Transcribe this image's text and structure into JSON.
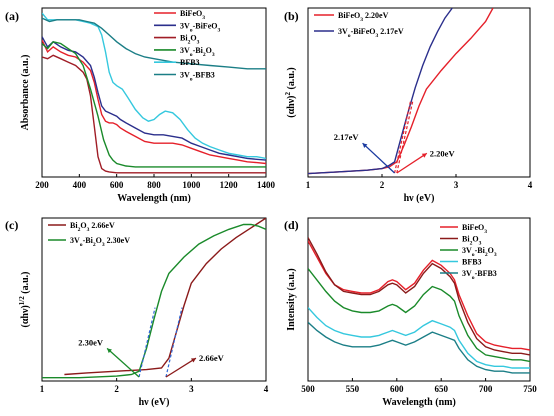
{
  "chart_data": [
    {
      "panel": "(a)",
      "type": "line",
      "xlabel": "Wavelength (nm)",
      "ylabel": "Absorbance (a.u.)",
      "xlim": [
        200,
        1400
      ],
      "ylim": [
        0,
        1
      ],
      "xticks": [
        "200",
        "400",
        "600",
        "800",
        "1000",
        "1200",
        "1400"
      ],
      "yticks": [],
      "grid": false,
      "legend_position": "top-right",
      "series": [
        {
          "name": "BiFeO3",
          "legend_main": "BiFeO",
          "legend_sub": "3",
          "legend_pre": "",
          "color": "#e5202a",
          "x": [
            200,
            230,
            260,
            300,
            340,
            380,
            420,
            460,
            480,
            500,
            520,
            540,
            560,
            580,
            600,
            620,
            650,
            700,
            750,
            800,
            850,
            900,
            950,
            1000,
            1050,
            1100,
            1150,
            1200,
            1250,
            1300,
            1350,
            1400
          ],
          "y": [
            0.81,
            0.74,
            0.77,
            0.74,
            0.72,
            0.71,
            0.68,
            0.63,
            0.56,
            0.46,
            0.37,
            0.33,
            0.32,
            0.32,
            0.31,
            0.29,
            0.27,
            0.24,
            0.21,
            0.2,
            0.2,
            0.2,
            0.19,
            0.17,
            0.15,
            0.13,
            0.12,
            0.11,
            0.1,
            0.09,
            0.085,
            0.08
          ]
        },
        {
          "name": "3Vo-BiFeO3",
          "legend_main": "3V",
          "legend_sub": "o",
          "legend_post": "-BiFeO",
          "legend_sub2": "3",
          "color": "#2b2f8c",
          "x": [
            200,
            230,
            260,
            300,
            340,
            380,
            420,
            460,
            480,
            500,
            520,
            540,
            560,
            580,
            600,
            620,
            650,
            700,
            750,
            800,
            850,
            900,
            950,
            1000,
            1050,
            1100,
            1150,
            1200,
            1250,
            1300,
            1350,
            1400
          ],
          "y": [
            0.83,
            0.77,
            0.8,
            0.77,
            0.75,
            0.74,
            0.71,
            0.66,
            0.59,
            0.5,
            0.42,
            0.39,
            0.38,
            0.37,
            0.36,
            0.34,
            0.32,
            0.29,
            0.26,
            0.25,
            0.25,
            0.24,
            0.23,
            0.2,
            0.18,
            0.16,
            0.14,
            0.13,
            0.12,
            0.11,
            0.105,
            0.1
          ]
        },
        {
          "name": "Bi2O3",
          "legend_main": "Bi",
          "legend_sub": "2",
          "legend_post": "O",
          "legend_sub2": "3",
          "color": "#a01d26",
          "x": [
            200,
            230,
            260,
            300,
            340,
            380,
            420,
            440,
            460,
            480,
            500,
            520,
            540,
            560,
            600,
            700,
            800,
            900,
            1000,
            1100,
            1200,
            1300,
            1400
          ],
          "y": [
            0.71,
            0.7,
            0.72,
            0.7,
            0.68,
            0.66,
            0.62,
            0.58,
            0.48,
            0.3,
            0.12,
            0.05,
            0.035,
            0.03,
            0.025,
            0.025,
            0.025,
            0.025,
            0.025,
            0.025,
            0.025,
            0.025,
            0.025
          ]
        },
        {
          "name": "3Vo-Bi2O3",
          "legend_main": "3V",
          "legend_sub": "o",
          "legend_post": "-Bi",
          "legend_sub2": "2",
          "legend_post2": "O",
          "legend_sub3": "3",
          "color": "#1a8a2a",
          "x": [
            200,
            230,
            260,
            300,
            340,
            380,
            420,
            460,
            500,
            530,
            560,
            580,
            600,
            650,
            700,
            800,
            900,
            1000,
            1100,
            1200,
            1300,
            1400
          ],
          "y": [
            0.79,
            0.76,
            0.8,
            0.79,
            0.76,
            0.73,
            0.66,
            0.52,
            0.36,
            0.22,
            0.13,
            0.1,
            0.08,
            0.065,
            0.06,
            0.06,
            0.06,
            0.06,
            0.06,
            0.06,
            0.06,
            0.06
          ]
        },
        {
          "name": "BFB3",
          "legend_main": "BFB3",
          "color": "#35c8de",
          "x": [
            200,
            230,
            260,
            300,
            340,
            380,
            420,
            460,
            500,
            520,
            540,
            560,
            580,
            600,
            630,
            660,
            700,
            740,
            770,
            800,
            830,
            860,
            900,
            940,
            980,
            1020,
            1060,
            1100,
            1150,
            1200,
            1250,
            1300,
            1350,
            1400
          ],
          "y": [
            0.97,
            0.93,
            0.93,
            0.93,
            0.93,
            0.93,
            0.92,
            0.91,
            0.89,
            0.84,
            0.74,
            0.62,
            0.56,
            0.54,
            0.52,
            0.47,
            0.4,
            0.35,
            0.33,
            0.34,
            0.37,
            0.39,
            0.38,
            0.34,
            0.28,
            0.23,
            0.2,
            0.18,
            0.16,
            0.14,
            0.13,
            0.12,
            0.12,
            0.11
          ]
        },
        {
          "name": "3Vo-BFB3",
          "legend_main": "3V",
          "legend_sub": "o",
          "legend_post": "-BFB3",
          "color": "#1b7e86",
          "x": [
            200,
            240,
            280,
            320,
            360,
            400,
            440,
            480,
            520,
            560,
            600,
            650,
            700,
            750,
            800,
            900,
            1000,
            1100,
            1200,
            1300,
            1400
          ],
          "y": [
            0.94,
            0.92,
            0.93,
            0.93,
            0.93,
            0.93,
            0.92,
            0.91,
            0.88,
            0.84,
            0.8,
            0.76,
            0.73,
            0.71,
            0.7,
            0.68,
            0.67,
            0.66,
            0.65,
            0.64,
            0.64
          ]
        }
      ]
    },
    {
      "panel": "(b)",
      "type": "line",
      "xlabel": "hν (eV)",
      "ylabel_main": "(αhν)",
      "ylabel_sup": "2",
      "ylabel_post": "(a.u.)",
      "xlim": [
        1,
        4
      ],
      "ylim": [
        0,
        1
      ],
      "xticks": [
        "1",
        "2",
        "3",
        "4"
      ],
      "grid": false,
      "legend_position": "top-left",
      "series": [
        {
          "name": "BiFeO3",
          "legend_main": "BiFeO",
          "legend_sub": "3",
          "legend_post": "  2.20eV",
          "color": "#e5202a",
          "x": [
            1.0,
            1.4,
            1.8,
            2.0,
            2.1,
            2.2,
            2.3,
            2.4,
            2.5,
            2.6,
            2.8,
            3.0,
            3.2,
            3.4,
            3.5
          ],
          "y": [
            0.02,
            0.03,
            0.04,
            0.05,
            0.06,
            0.09,
            0.19,
            0.3,
            0.42,
            0.52,
            0.63,
            0.73,
            0.82,
            0.92,
            1.0
          ]
        },
        {
          "name": "3Vo-BiFeO3",
          "legend_main": "3V",
          "legend_sub": "o",
          "legend_post": "-BiFeO",
          "legend_sub2": "3",
          "legend_post2": "  2.17eV",
          "color": "#2b2f8c",
          "x": [
            1.0,
            1.4,
            1.8,
            2.0,
            2.1,
            2.17,
            2.25,
            2.35,
            2.45,
            2.55,
            2.65,
            2.75,
            2.85,
            2.95
          ],
          "y": [
            0.02,
            0.03,
            0.04,
            0.05,
            0.07,
            0.09,
            0.22,
            0.38,
            0.53,
            0.66,
            0.77,
            0.86,
            0.94,
            1.0
          ]
        }
      ],
      "annotations": [
        {
          "text": "2.17eV",
          "x": 2.17,
          "color": "#1a3aa0"
        },
        {
          "text": "2.20eV",
          "x": 2.2,
          "color": "#e5202a"
        }
      ]
    },
    {
      "panel": "(c)",
      "type": "line",
      "xlabel": "hν (eV)",
      "ylabel_main": "(αhν)",
      "ylabel_sup": "1/2",
      "ylabel_post": "(a.u.)",
      "xlim": [
        1,
        4
      ],
      "ylim": [
        0,
        1
      ],
      "xticks": [
        "1",
        "2",
        "3",
        "4"
      ],
      "grid": false,
      "legend_position": "top-left",
      "series": [
        {
          "name": "Bi2O3",
          "legend_main": "Bi",
          "legend_sub": "2",
          "legend_post": "O",
          "legend_sub2": "3",
          "legend_post2": "  2.66eV",
          "color": "#8b1a1a",
          "x": [
            1.3,
            1.6,
            2.0,
            2.4,
            2.6,
            2.7,
            2.8,
            2.9,
            3.0,
            3.2,
            3.4,
            3.6,
            3.8,
            4.0
          ],
          "y": [
            0.04,
            0.05,
            0.06,
            0.07,
            0.08,
            0.14,
            0.3,
            0.46,
            0.6,
            0.72,
            0.81,
            0.88,
            0.94,
            1.0
          ]
        },
        {
          "name": "3Vo-Bi2O3",
          "legend_main": "3V",
          "legend_sub": "o",
          "legend_post": "-Bi",
          "legend_sub2": "2",
          "legend_post2": "O",
          "legend_sub3": "3",
          "legend_post3": "  2.30eV",
          "color": "#1a8a2a",
          "x": [
            1.0,
            1.5,
            2.0,
            2.2,
            2.3,
            2.4,
            2.5,
            2.6,
            2.7,
            2.9,
            3.1,
            3.3,
            3.5,
            3.7,
            3.8,
            3.9,
            4.0
          ],
          "y": [
            0.02,
            0.02,
            0.03,
            0.04,
            0.06,
            0.2,
            0.38,
            0.55,
            0.66,
            0.76,
            0.84,
            0.89,
            0.93,
            0.96,
            0.96,
            0.95,
            0.93
          ]
        }
      ],
      "annotations": [
        {
          "text": "2.30eV",
          "x": 2.3,
          "color": "#1a8a2a"
        },
        {
          "text": "2.66eV",
          "x": 2.66,
          "color": "#8b1a1a"
        }
      ]
    },
    {
      "panel": "(d)",
      "type": "line",
      "xlabel": "Wavelength (nm)",
      "ylabel": "Intensity (a.u.)",
      "xlim": [
        500,
        750
      ],
      "ylim": [
        0,
        1
      ],
      "xticks": [
        "500",
        "550",
        "600",
        "650",
        "700",
        "750"
      ],
      "grid": false,
      "legend_position": "top-right",
      "series": [
        {
          "name": "BiFeO3",
          "legend_main": "BiFeO",
          "legend_sub": "3",
          "color": "#e5202a",
          "x": [
            500,
            510,
            520,
            530,
            540,
            550,
            560,
            570,
            580,
            590,
            595,
            600,
            610,
            620,
            630,
            640,
            650,
            660,
            665,
            670,
            680,
            690,
            700,
            710,
            720,
            730,
            740,
            750
          ],
          "y": [
            0.86,
            0.76,
            0.66,
            0.59,
            0.56,
            0.55,
            0.54,
            0.54,
            0.56,
            0.61,
            0.62,
            0.61,
            0.56,
            0.6,
            0.68,
            0.74,
            0.71,
            0.66,
            0.62,
            0.53,
            0.4,
            0.29,
            0.24,
            0.22,
            0.21,
            0.2,
            0.2,
            0.19
          ]
        },
        {
          "name": "Bi2O3",
          "legend_main": "Bi",
          "legend_sub": "2",
          "legend_post": "O",
          "legend_sub2": "3",
          "color": "#8b1a1a",
          "x": [
            500,
            510,
            520,
            530,
            540,
            550,
            560,
            570,
            580,
            590,
            595,
            600,
            610,
            620,
            630,
            640,
            650,
            660,
            665,
            670,
            680,
            690,
            700,
            710,
            720,
            730,
            740,
            750
          ],
          "y": [
            0.88,
            0.78,
            0.67,
            0.59,
            0.55,
            0.54,
            0.53,
            0.53,
            0.55,
            0.59,
            0.6,
            0.59,
            0.54,
            0.58,
            0.66,
            0.72,
            0.69,
            0.64,
            0.6,
            0.5,
            0.36,
            0.26,
            0.21,
            0.19,
            0.18,
            0.17,
            0.17,
            0.16
          ]
        },
        {
          "name": "3Vo-Bi2O3",
          "legend_main": "3V",
          "legend_sub": "o",
          "legend_post": "-Bi",
          "legend_sub2": "2",
          "legend_post2": "O",
          "legend_sub3": "3",
          "color": "#1a8a2a",
          "x": [
            500,
            510,
            520,
            530,
            540,
            550,
            560,
            570,
            580,
            590,
            595,
            600,
            610,
            620,
            630,
            640,
            650,
            660,
            665,
            670,
            680,
            690,
            700,
            710,
            720,
            730,
            740,
            750
          ],
          "y": [
            0.69,
            0.62,
            0.55,
            0.49,
            0.45,
            0.43,
            0.42,
            0.42,
            0.43,
            0.46,
            0.47,
            0.46,
            0.42,
            0.46,
            0.53,
            0.58,
            0.56,
            0.52,
            0.49,
            0.4,
            0.28,
            0.2,
            0.16,
            0.15,
            0.14,
            0.13,
            0.13,
            0.12
          ]
        },
        {
          "name": "BFB3",
          "legend_main": "BFB3",
          "color": "#35c8de",
          "x": [
            500,
            510,
            520,
            530,
            540,
            550,
            560,
            570,
            580,
            590,
            595,
            600,
            610,
            620,
            630,
            640,
            650,
            660,
            665,
            670,
            680,
            690,
            700,
            710,
            720,
            730,
            740,
            750
          ],
          "y": [
            0.45,
            0.39,
            0.34,
            0.31,
            0.29,
            0.28,
            0.27,
            0.27,
            0.28,
            0.3,
            0.31,
            0.3,
            0.28,
            0.3,
            0.34,
            0.37,
            0.35,
            0.33,
            0.31,
            0.25,
            0.17,
            0.12,
            0.1,
            0.09,
            0.09,
            0.08,
            0.08,
            0.08
          ]
        },
        {
          "name": "3Vo-BFB3",
          "legend_main": "3V",
          "legend_sub": "o",
          "legend_post": "-BFB3",
          "color": "#1b7e86",
          "x": [
            500,
            510,
            520,
            530,
            540,
            550,
            560,
            570,
            580,
            590,
            595,
            600,
            610,
            620,
            630,
            640,
            650,
            660,
            665,
            670,
            680,
            690,
            700,
            710,
            720,
            730,
            740,
            750
          ],
          "y": [
            0.36,
            0.31,
            0.27,
            0.24,
            0.22,
            0.21,
            0.21,
            0.21,
            0.22,
            0.24,
            0.25,
            0.24,
            0.22,
            0.24,
            0.27,
            0.3,
            0.28,
            0.26,
            0.25,
            0.2,
            0.13,
            0.09,
            0.07,
            0.06,
            0.06,
            0.05,
            0.05,
            0.05
          ]
        }
      ]
    }
  ]
}
